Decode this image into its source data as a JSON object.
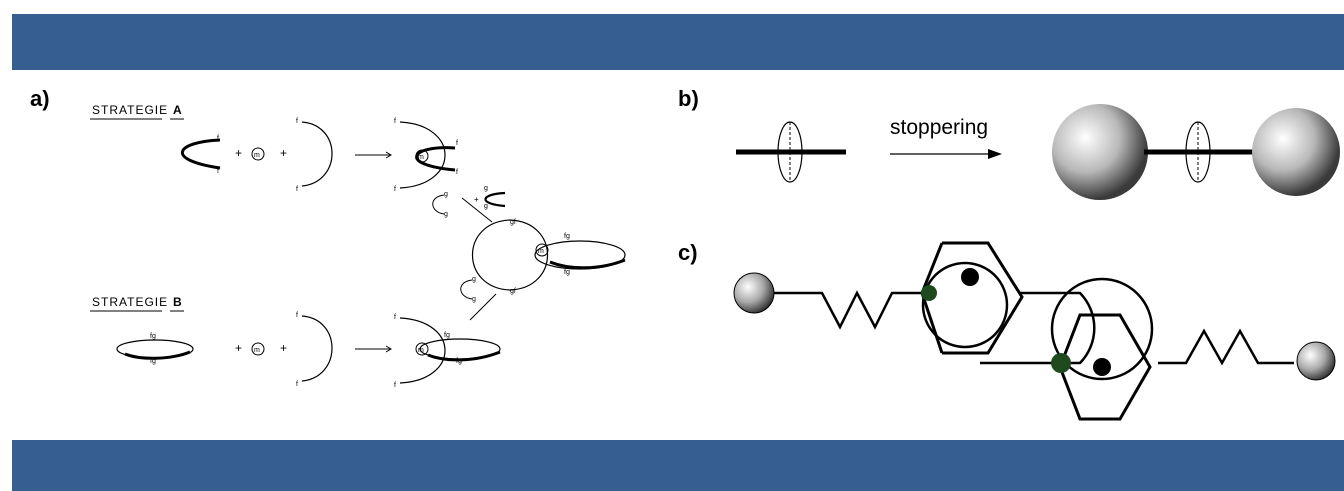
{
  "panels": {
    "a": {
      "label": "a)",
      "strategy_a": "STRATEGIE",
      "strategy_a_letter": "A",
      "strategy_b": "STRATEGIE",
      "strategy_b_letter": "B",
      "plus": "+",
      "metal": "m"
    },
    "b": {
      "label": "b)",
      "arrow_label": "stoppering"
    },
    "c": {
      "label": "c)"
    }
  },
  "colors": {
    "band": "#365f8f",
    "junction": "#1e4a1e"
  }
}
